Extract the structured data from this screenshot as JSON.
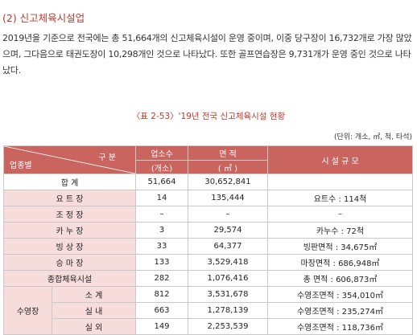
{
  "section": {
    "title": "(2) 신고체육시설업",
    "paragraph": "2019년을 기준으로 전국에는 총 51,664개의 신고체육시설이 운영 중이며, 이중 당구장이 16,732개로 가장 많았으며, 그다음으로 태권도장이 10,298개인 것으로 나타났다. 또한 골프연습장은 9,731개가 운영 중인 것으로 나타났다."
  },
  "table": {
    "caption": "〈표 2-53〉'19년 전국 신고체육시설 현황",
    "unit": "(단위: 개소, ㎡, 척, 타석)",
    "header": {
      "corner_top": "구 분",
      "corner_bottom": "업종별",
      "count_line1": "업소수",
      "count_line2": "(개소)",
      "area_line1": "면 적",
      "area_line2": "( ㎡ )",
      "scale": "시 설 규 모"
    },
    "rows": [
      {
        "label": "합 계",
        "count": "51,664",
        "area": "30,652,841",
        "scale": ""
      },
      {
        "label": "요 트 장",
        "count": "14",
        "area": "135,444",
        "scale": "요트수 : 114척"
      },
      {
        "label": "조 정 장",
        "count": "–",
        "area": "–",
        "scale": "–"
      },
      {
        "label": "카 누 장",
        "count": "3",
        "area": "29,574",
        "scale": "카누수 : 72척"
      },
      {
        "label": "빙 상 장",
        "count": "33",
        "area": "64,377",
        "scale": "빙판면적 : 34,675㎡"
      },
      {
        "label": "승 마 장",
        "count": "133",
        "area": "3,529,418",
        "scale": "마장면적 : 686,948㎡"
      },
      {
        "label": "종합체육시설",
        "count": "282",
        "area": "1,076,416",
        "scale": "총 면적 : 606,873㎡"
      }
    ],
    "pool_group": "수영장",
    "pool_rows": [
      {
        "label": "소 계",
        "count": "812",
        "area": "3,531,678",
        "scale": "수영조면적 : 354,010㎡"
      },
      {
        "label": "실 내",
        "count": "663",
        "area": "1,278,139",
        "scale": "수영조면적 : 235,274㎡"
      },
      {
        "label": "실 외",
        "count": "149",
        "area": "2,253,539",
        "scale": "수영조면적 : 118,736㎡"
      }
    ]
  }
}
